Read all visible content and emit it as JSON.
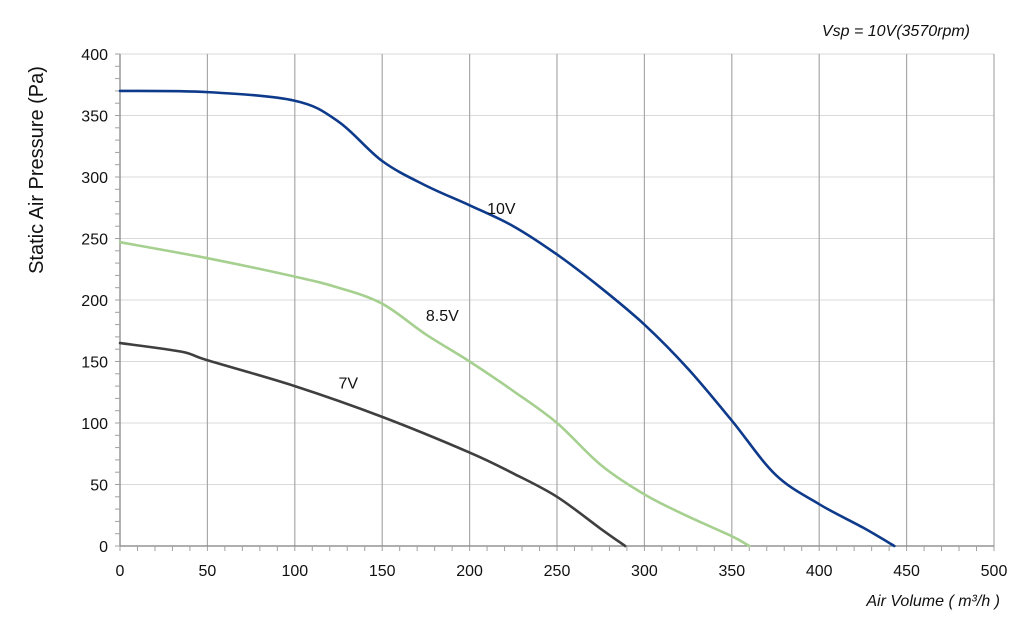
{
  "chart_data": {
    "type": "line",
    "title": "",
    "subtitle": "Vsp = 10V(3570rpm)",
    "xlabel": "Air Volume ( m³/h )",
    "ylabel": "Static Air Pressure  (Pa)",
    "xlim": [
      0,
      500
    ],
    "ylim": [
      0,
      400
    ],
    "x_ticks": [
      "0",
      "50",
      "100",
      "150",
      "200",
      "250",
      "300",
      "350",
      "400",
      "450",
      "500"
    ],
    "y_ticks": [
      "0",
      "50",
      "100",
      "150",
      "200",
      "250",
      "300",
      "350",
      "400"
    ],
    "grid": true,
    "legend": "none",
    "series": [
      {
        "name": "10V",
        "color": "#0d3a8a",
        "x": [
          0,
          50,
          100,
          125,
          150,
          175,
          200,
          225,
          250,
          275,
          300,
          325,
          350,
          375,
          400,
          425,
          443
        ],
        "y": [
          370,
          369,
          362,
          345,
          313,
          293,
          277,
          260,
          237,
          210,
          180,
          144,
          102,
          58,
          34,
          15,
          0
        ]
      },
      {
        "name": "8.5V",
        "color": "#a6d08f",
        "x": [
          0,
          50,
          100,
          125,
          150,
          175,
          200,
          225,
          250,
          275,
          300,
          325,
          350,
          360
        ],
        "y": [
          247,
          234,
          219,
          210,
          197,
          172,
          150,
          126,
          100,
          66,
          42,
          24,
          8,
          0
        ]
      },
      {
        "name": "7V",
        "color": "#3f3f3f",
        "x": [
          0,
          35,
          50,
          100,
          150,
          200,
          225,
          250,
          275,
          289
        ],
        "y": [
          165,
          158,
          151,
          130,
          105,
          76,
          59,
          40,
          14,
          0
        ]
      }
    ],
    "annotations": [
      {
        "text": "10V",
        "x": 210,
        "y": 270
      },
      {
        "text": "8.5V",
        "x": 175,
        "y": 183
      },
      {
        "text": "7V",
        "x": 125,
        "y": 128
      }
    ]
  }
}
